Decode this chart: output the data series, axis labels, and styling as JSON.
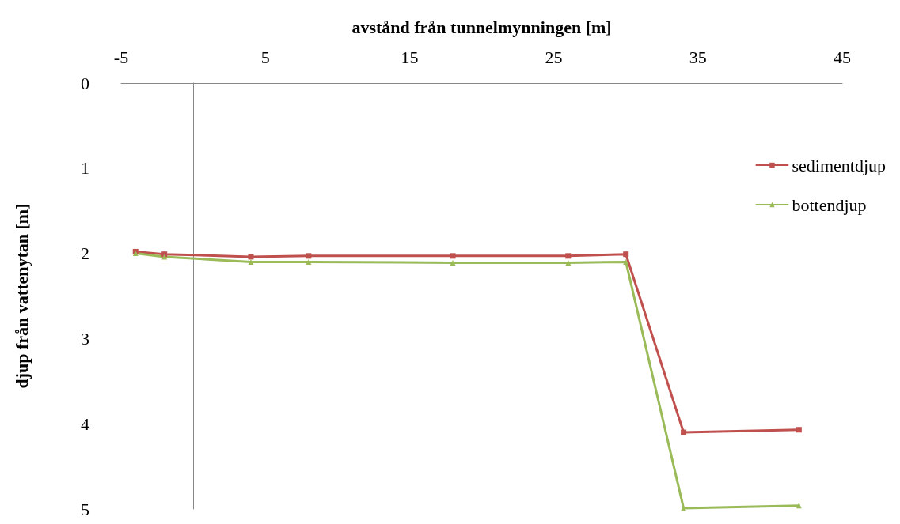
{
  "chart_data": {
    "type": "line",
    "xlabel": "avstånd från tunnelmynningen [m]",
    "ylabel": "djup från vattenytan [m]",
    "xlim": [
      -5,
      45
    ],
    "xticks": [
      -5,
      5,
      15,
      25,
      35,
      45
    ],
    "ylim": [
      5,
      0
    ],
    "yticks": [
      0,
      1,
      2,
      3,
      4,
      5
    ],
    "grid": false,
    "legend": "right",
    "x": [
      -4,
      -2,
      4,
      8,
      18,
      26,
      30,
      34,
      42
    ],
    "series": [
      {
        "name": "sedimentdjup",
        "color": "#c0504d",
        "marker": "square",
        "values": [
          1.98,
          2.01,
          2.04,
          2.03,
          2.03,
          2.03,
          2.01,
          4.1,
          4.07
        ]
      },
      {
        "name": "bottendjup",
        "color": "#9bbb59",
        "marker": "triangle",
        "values": [
          2.0,
          2.04,
          2.1,
          2.1,
          2.11,
          2.11,
          2.1,
          4.99,
          4.96
        ]
      }
    ]
  }
}
